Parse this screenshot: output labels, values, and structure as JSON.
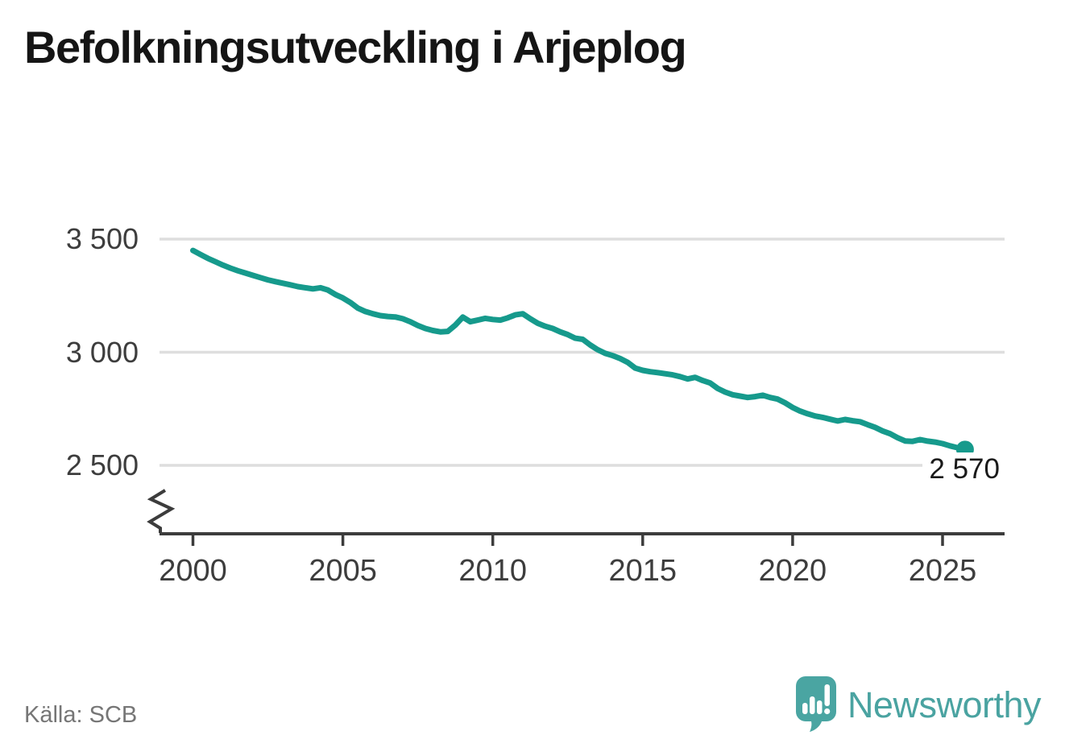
{
  "header": {
    "title": "Befolkningsutveckling i Arjeplog"
  },
  "source": {
    "label": "Källa: SCB"
  },
  "brand": {
    "text": "Newsworthy"
  },
  "colors": {
    "line": "#169a8c",
    "grid": "#dedede",
    "axis": "#3c3c3c",
    "tick_text": "#3d3d3d",
    "logo": "#4aa5a2",
    "logo_text": "#4aa3a1"
  },
  "chart_data": {
    "type": "line",
    "title": "Befolkningsutveckling i Arjeplog",
    "xlabel": "",
    "ylabel": "",
    "grid": "horizontal",
    "legend": "none",
    "axis_break": true,
    "ylim": [
      2500,
      3500
    ],
    "xlim": [
      2000,
      2026
    ],
    "yticks": [
      {
        "label": "3 500",
        "value": 3500
      },
      {
        "label": "3 000",
        "value": 3000
      },
      {
        "label": "2 500",
        "value": 2500
      }
    ],
    "xticks": [
      {
        "label": "2000",
        "value": 2000
      },
      {
        "label": "2005",
        "value": 2005
      },
      {
        "label": "2010",
        "value": 2010
      },
      {
        "label": "2015",
        "value": 2015
      },
      {
        "label": "2020",
        "value": 2020
      },
      {
        "label": "2025",
        "value": 2025
      }
    ],
    "end_point": {
      "x": 2025.75,
      "value": 2570,
      "label": "2 570"
    },
    "x": [
      2000,
      2000.25,
      2000.5,
      2000.75,
      2001,
      2001.25,
      2001.5,
      2001.75,
      2002,
      2002.25,
      2002.5,
      2002.75,
      2003,
      2003.25,
      2003.5,
      2003.75,
      2004,
      2004.25,
      2004.5,
      2004.75,
      2005,
      2005.25,
      2005.5,
      2005.75,
      2006,
      2006.25,
      2006.5,
      2006.75,
      2007,
      2007.25,
      2007.5,
      2007.75,
      2008,
      2008.25,
      2008.5,
      2008.75,
      2009,
      2009.25,
      2009.5,
      2009.75,
      2010,
      2010.25,
      2010.5,
      2010.75,
      2011,
      2011.25,
      2011.5,
      2011.75,
      2012,
      2012.25,
      2012.5,
      2012.75,
      2013,
      2013.25,
      2013.5,
      2013.75,
      2014,
      2014.25,
      2014.5,
      2014.75,
      2015,
      2015.25,
      2015.5,
      2015.75,
      2016,
      2016.25,
      2016.5,
      2016.75,
      2017,
      2017.25,
      2017.5,
      2017.75,
      2018,
      2018.25,
      2018.5,
      2018.75,
      2019,
      2019.25,
      2019.5,
      2019.75,
      2020,
      2020.25,
      2020.5,
      2020.75,
      2021,
      2021.25,
      2021.5,
      2021.75,
      2022,
      2022.25,
      2022.5,
      2022.75,
      2023,
      2023.25,
      2023.5,
      2023.75,
      2024,
      2024.25,
      2024.5,
      2024.75,
      2025,
      2025.25,
      2025.5,
      2025.75
    ],
    "series": [
      {
        "name": "Befolkning",
        "values": [
          3450,
          3432,
          3415,
          3400,
          3385,
          3372,
          3360,
          3350,
          3340,
          3330,
          3320,
          3312,
          3305,
          3298,
          3290,
          3285,
          3280,
          3285,
          3275,
          3255,
          3240,
          3220,
          3195,
          3180,
          3170,
          3162,
          3158,
          3156,
          3148,
          3135,
          3118,
          3105,
          3096,
          3090,
          3092,
          3120,
          3155,
          3135,
          3142,
          3150,
          3145,
          3142,
          3152,
          3165,
          3170,
          3148,
          3128,
          3115,
          3105,
          3090,
          3078,
          3062,
          3057,
          3032,
          3011,
          2995,
          2985,
          2972,
          2955,
          2930,
          2920,
          2914,
          2910,
          2905,
          2900,
          2892,
          2882,
          2889,
          2875,
          2864,
          2840,
          2824,
          2812,
          2806,
          2800,
          2804,
          2810,
          2800,
          2793,
          2776,
          2756,
          2740,
          2728,
          2718,
          2712,
          2704,
          2696,
          2703,
          2697,
          2693,
          2680,
          2668,
          2652,
          2640,
          2622,
          2608,
          2606,
          2614,
          2607,
          2603,
          2596,
          2586,
          2578,
          2570
        ]
      }
    ]
  }
}
